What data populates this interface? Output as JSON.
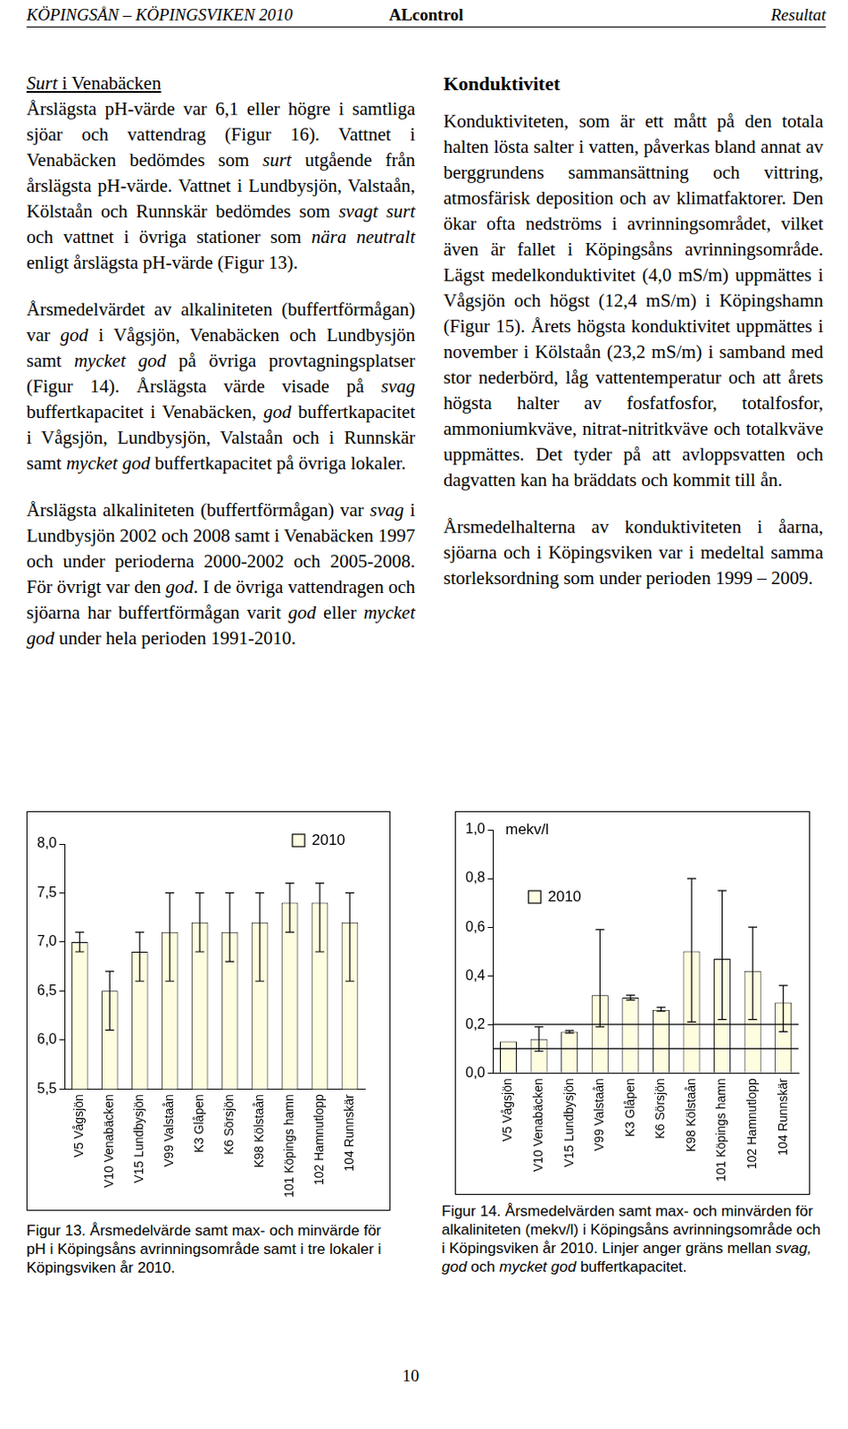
{
  "header": {
    "left": "KÖPINGSÅN – KÖPINGSVIKEN 2010",
    "center": "ALcontrol",
    "right": "Resultat"
  },
  "left_column": {
    "heading": [
      {
        "text": "Surt",
        "style": "italic underline"
      },
      {
        "text": " i Venabäcken",
        "style": "underline"
      }
    ],
    "paragraphs": [
      [
        {
          "text": "Årslägsta pH-värde var 6,1 eller högre i samtliga sjöar och vattendrag (Figur 16). Vattnet i Venabäcken bedömdes som "
        },
        {
          "text": "surt",
          "style": "italic"
        },
        {
          "text": " utgående från årslägsta pH-värde. Vattnet i Lundbysjön, Valstaån, Kölstaån och Runnskär bedömdes som "
        },
        {
          "text": "svagt surt",
          "style": "italic"
        },
        {
          "text": " och vattnet i övriga stationer som "
        },
        {
          "text": "nära neutralt",
          "style": "italic"
        },
        {
          "text": " enligt årslägsta pH-värde (Figur 13)."
        }
      ],
      [
        {
          "text": "Årsmedelvärdet av alkaliniteten (buffertförmågan) var "
        },
        {
          "text": "god",
          "style": "italic"
        },
        {
          "text": " i Vågsjön, Venabäcken och Lundbysjön samt "
        },
        {
          "text": "mycket god",
          "style": "italic"
        },
        {
          "text": " på övriga provtagningsplatser (Figur 14). Årslägsta värde visade på "
        },
        {
          "text": "svag",
          "style": "italic"
        },
        {
          "text": " buffertkapacitet i Venabäcken, "
        },
        {
          "text": "god",
          "style": "italic"
        },
        {
          "text": " buffertkapacitet i Vågsjön, Lundbysjön, Valstaån och i Runnskär samt "
        },
        {
          "text": "mycket god",
          "style": "italic"
        },
        {
          "text": " buffertkapacitet på övriga lokaler."
        }
      ],
      [
        {
          "text": "Årslägsta alkaliniteten (buffertförmågan) var "
        },
        {
          "text": "svag",
          "style": "italic"
        },
        {
          "text": " i Lundbysjön 2002 och 2008 samt i Venabäcken 1997 och under perioderna 2000-2002 och 2005-2008. För övrigt var den "
        },
        {
          "text": "god",
          "style": "italic"
        },
        {
          "text": ". I de övriga vattendragen och sjöarna har buffertförmågan varit "
        },
        {
          "text": "god",
          "style": "italic"
        },
        {
          "text": " eller "
        },
        {
          "text": "mycket god",
          "style": "italic"
        },
        {
          "text": " under hela perioden 1991-2010."
        }
      ]
    ]
  },
  "right_column": {
    "heading": [
      {
        "text": "Konduktivitet"
      }
    ],
    "paragraphs": [
      [
        {
          "text": "Konduktiviteten, som är ett mått på den totala halten lösta salter i vatten, påverkas bland annat av berggrundens sammansättning och vittring, atmosfärisk deposition och av klimatfaktorer. Den ökar ofta nedströms i avrinningsområdet, vilket även är fallet i Köpingsåns avrinningsområde. Lägst medelkonduktivitet (4,0 mS/m) uppmättes i Vågsjön och högst (12,4 mS/m) i Köpingshamn (Figur 15). Årets högsta konduktivitet uppmättes i november i Kölstaån (23,2 mS/m) i samband med stor nederbörd, låg vattentemperatur och att årets högsta halter av fosfatfosfor, totalfosfor, ammoniumkväve, nitrat-nitritkväve och totalkväve uppmättes. Det tyder på att avloppsvatten och dagvatten kan ha bräddats och kommit till ån."
        }
      ],
      [
        {
          "text": "Årsmedelhalterna av konduktiviteten i åarna, sjöarna och i Köpingsviken var i medeltal samma storleksordning som under perioden 1999 – 2009."
        }
      ]
    ]
  },
  "chart_data": [
    {
      "type": "bar",
      "caption": [
        {
          "text": "Figur 13. Årsmedelvärde samt max- och minvärde för pH i Köpingsåns avrinningsområde samt i tre lokaler i Köpingsviken år 2010."
        }
      ],
      "categories": [
        "V5 Vågsjön",
        "V10 Venabäcken",
        "V15 Lundbysjön",
        "V99 Valstaån",
        "K3 Glåpen",
        "K6 Sörsjön",
        "K98 Kölstaån",
        "101 Köpings hamn",
        "102 Hamnutlopp",
        "104 Runnskär"
      ],
      "series": [
        {
          "name": "2010",
          "color": "#fffde0",
          "values": [
            7.0,
            6.5,
            6.9,
            7.1,
            7.2,
            7.1,
            7.2,
            7.4,
            7.4,
            7.2
          ],
          "min": [
            6.9,
            6.1,
            6.6,
            6.6,
            6.9,
            6.8,
            6.6,
            7.1,
            6.9,
            6.6
          ],
          "max": [
            7.1,
            6.7,
            7.1,
            7.5,
            7.5,
            7.5,
            7.5,
            7.6,
            7.6,
            7.5
          ]
        }
      ],
      "ylim": [
        5.5,
        8.0
      ],
      "yticks": [
        {
          "value": 5.5,
          "label": "5,5"
        },
        {
          "value": 6.0,
          "label": "6,0"
        },
        {
          "value": 6.5,
          "label": "6,5"
        },
        {
          "value": 7.0,
          "label": "7,0"
        },
        {
          "value": 7.5,
          "label": "7,5"
        },
        {
          "value": 8.0,
          "label": "8,0"
        }
      ],
      "grid": false,
      "legend": "top-right"
    },
    {
      "type": "bar",
      "caption": [
        {
          "text": "Figur 14. Årsmedelvärden samt max- och minvärden för alkaliniteten (mekv/l) i Köpingsåns avrinningsområde och i Köpingsviken år 2010. Linjer anger gräns mellan "
        },
        {
          "text": "svag, god",
          "style": "italic"
        },
        {
          "text": " och "
        },
        {
          "text": "mycket god",
          "style": "italic"
        },
        {
          "text": " buffertkapacitet."
        }
      ],
      "y_label": "mekv/l",
      "categories": [
        "V5 Vågsjön",
        "V10 Venabäcken",
        "V15 Lundbysjön",
        "V99 Valstaån",
        "K3 Glåpen",
        "K6 Sörsjön",
        "K98 Kölstaån",
        "101 Köpings hamn",
        "102 Hamnutlopp",
        "104 Runnskär"
      ],
      "series": [
        {
          "name": "2010",
          "color": "#fffde0",
          "values": [
            0.13,
            0.14,
            0.17,
            0.32,
            0.31,
            0.26,
            0.5,
            0.47,
            0.42,
            0.29
          ],
          "min": [
            null,
            0.09,
            0.165,
            0.19,
            0.3,
            0.255,
            0.21,
            0.22,
            0.22,
            0.17
          ],
          "max": [
            null,
            0.19,
            0.175,
            0.59,
            0.32,
            0.27,
            0.8,
            0.75,
            0.6,
            0.36
          ]
        }
      ],
      "thresholds": [
        0.1,
        0.2
      ],
      "ylim": [
        0,
        1.0
      ],
      "yticks": [
        {
          "value": 0,
          "label": "0,0"
        },
        {
          "value": 0.2,
          "label": "0,2"
        },
        {
          "value": 0.4,
          "label": "0,4"
        },
        {
          "value": 0.6,
          "label": "0,6"
        },
        {
          "value": 0.8,
          "label": "0,8"
        },
        {
          "value": 1.0,
          "label": "1,0"
        }
      ],
      "grid": false,
      "legend": "top-left"
    }
  ],
  "page_number": "10"
}
